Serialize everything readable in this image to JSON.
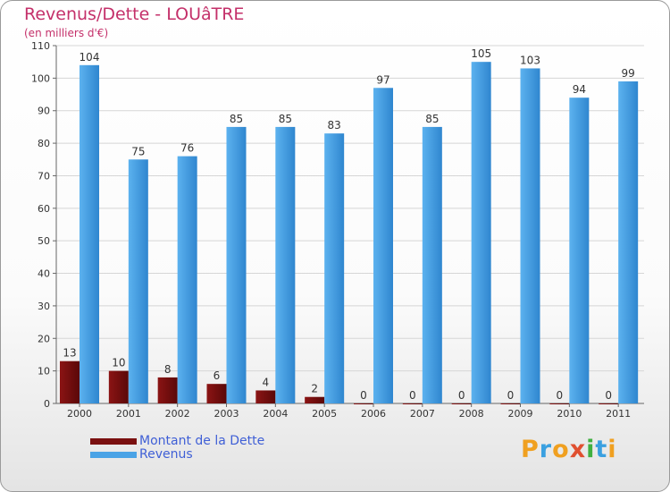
{
  "title": "Revenus/Dette - LOUâTRE",
  "subtitle": "(en milliers d'€)",
  "logo": {
    "text": "Proxiti",
    "letters": [
      {
        "ch": "P",
        "color": "#f0a020"
      },
      {
        "ch": "r",
        "color": "#3aa0e0"
      },
      {
        "ch": "o",
        "color": "#f0a020"
      },
      {
        "ch": "x",
        "color": "#e05030"
      },
      {
        "ch": "i",
        "color": "#40b040"
      },
      {
        "ch": "t",
        "color": "#3aa0e0"
      },
      {
        "ch": "i",
        "color": "#f0a020"
      }
    ]
  },
  "chart_data": {
    "type": "bar",
    "categories": [
      "2000",
      "2001",
      "2002",
      "2003",
      "2004",
      "2005",
      "2006",
      "2007",
      "2008",
      "2009",
      "2010",
      "2011"
    ],
    "series": [
      {
        "name": "Montant de la Dette",
        "color": "#7a1010",
        "values": [
          13,
          10,
          8,
          6,
          4,
          2,
          0,
          0,
          0,
          0,
          0,
          0
        ]
      },
      {
        "name": "Revenus",
        "color": "#4aa3e6",
        "values": [
          104,
          75,
          76,
          85,
          85,
          83,
          97,
          85,
          105,
          103,
          94,
          99
        ]
      }
    ],
    "ylim": [
      0,
      110
    ],
    "yticks": [
      0,
      10,
      20,
      30,
      40,
      50,
      60,
      70,
      80,
      90,
      100,
      110
    ],
    "grid": true,
    "legend": "bottom-left"
  }
}
